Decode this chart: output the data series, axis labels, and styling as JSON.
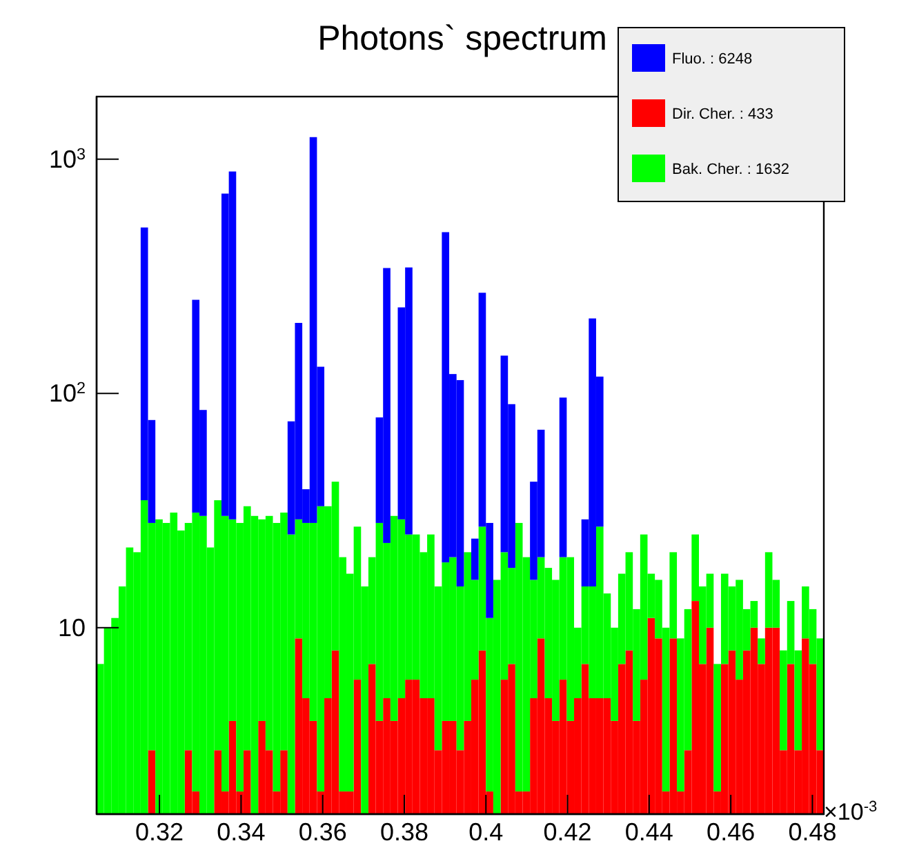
{
  "chart_data": {
    "type": "bar",
    "title": "Photons` spectrum",
    "stacked": true,
    "log": "y",
    "grid": false,
    "legend": "top right",
    "x": [
      0.3055,
      0.3073,
      0.3091,
      0.3109,
      0.3127,
      0.3145,
      0.3163,
      0.3181,
      0.3199,
      0.3217,
      0.3235,
      0.3253,
      0.3271,
      0.3289,
      0.3307,
      0.3325,
      0.3343,
      0.3361,
      0.3379,
      0.3397,
      0.3415,
      0.3433,
      0.3451,
      0.3469,
      0.3487,
      0.3505,
      0.3523,
      0.3541,
      0.3559,
      0.3577,
      0.3595,
      0.3613,
      0.3631,
      0.3649,
      0.3667,
      0.3685,
      0.3703,
      0.3721,
      0.3739,
      0.3757,
      0.3775,
      0.3793,
      0.3811,
      0.3829,
      0.3847,
      0.3865,
      0.3883,
      0.3901,
      0.3919,
      0.3937,
      0.3955,
      0.3973,
      0.3991,
      0.4009,
      0.4027,
      0.4045,
      0.4063,
      0.4081,
      0.4099,
      0.4117,
      0.4135,
      0.4153,
      0.4171,
      0.4189,
      0.4207,
      0.4225,
      0.4243,
      0.4261,
      0.4279,
      0.4297,
      0.4315,
      0.4333,
      0.4351,
      0.4369,
      0.4387,
      0.4405,
      0.4423,
      0.4441,
      0.4459,
      0.4477,
      0.4495,
      0.4513,
      0.4531,
      0.4549,
      0.4567,
      0.4585,
      0.4603,
      0.4621,
      0.4639,
      0.4657,
      0.4675,
      0.4693,
      0.4711,
      0.4729,
      0.4747,
      0.4765,
      0.4783,
      0.4801,
      0.4819
    ],
    "series": [
      {
        "name": "Dir. Cher. : 433",
        "color": "#ff0000",
        "values": [
          null,
          null,
          null,
          null,
          null,
          null,
          null,
          3,
          null,
          null,
          null,
          null,
          3,
          2,
          null,
          null,
          3,
          2,
          4,
          2,
          3,
          null,
          4,
          3,
          2,
          3,
          null,
          9,
          5,
          4,
          2,
          5,
          8,
          2,
          2,
          6,
          null,
          7,
          4,
          5,
          4,
          5,
          6,
          6,
          5,
          5,
          3,
          4,
          4,
          3,
          4,
          6,
          8,
          2,
          null,
          6,
          7,
          2,
          2,
          5,
          9,
          5,
          4,
          6,
          4,
          5,
          7,
          5,
          5,
          5,
          4,
          7,
          8,
          4,
          6,
          11,
          9,
          2,
          9,
          2,
          3,
          13,
          7,
          10,
          2,
          7,
          8,
          6,
          8,
          10,
          7,
          10,
          10,
          3,
          7,
          3,
          9,
          7,
          3
        ]
      },
      {
        "name": "Bak. Cher. : 1632",
        "color": "#00ff00",
        "values": [
          7,
          10,
          11,
          15,
          22,
          21,
          35,
          25,
          29,
          28,
          31,
          26,
          25,
          29,
          30,
          22,
          32,
          28,
          25,
          26,
          30,
          30,
          25,
          27,
          26,
          28,
          25,
          20,
          23,
          24,
          31,
          28,
          34,
          18,
          15,
          21,
          15,
          13,
          24,
          18,
          26,
          24,
          19,
          19,
          16,
          20,
          12,
          15,
          16,
          12,
          17,
          10,
          19,
          9,
          16,
          15,
          11,
          26,
          18,
          11,
          11,
          13,
          12,
          14,
          16,
          5,
          8,
          10,
          22,
          9,
          6,
          10,
          13,
          8,
          19,
          6,
          7,
          8,
          12,
          7,
          9,
          12,
          8,
          7,
          5,
          10,
          7,
          10,
          4,
          3,
          2,
          11,
          6,
          5,
          6,
          5,
          6,
          5,
          6
        ]
      },
      {
        "name": "Fluo. : 6248",
        "color": "#0000ff",
        "values": [
          null,
          null,
          null,
          null,
          null,
          null,
          476,
          49,
          null,
          null,
          null,
          null,
          null,
          220,
          55,
          null,
          null,
          683,
          857,
          null,
          null,
          null,
          null,
          null,
          null,
          null,
          51,
          171,
          11,
          1214,
          97,
          null,
          null,
          null,
          null,
          null,
          null,
          null,
          51,
          320,
          null,
          204,
          320,
          null,
          null,
          null,
          null,
          469,
          101,
          99,
          null,
          8,
          242,
          17,
          null,
          124,
          72,
          null,
          null,
          26,
          50,
          null,
          null,
          76,
          null,
          null,
          14,
          194,
          91,
          null,
          null,
          null,
          null,
          null,
          null,
          null,
          null,
          null,
          null,
          null,
          null,
          null,
          null,
          null,
          null,
          null,
          null,
          null,
          null,
          null,
          null,
          null,
          null,
          null,
          null,
          null,
          null,
          null,
          null
        ]
      }
    ],
    "xlim": [
      0.3046,
      0.4828
    ],
    "xticks": [
      0.32,
      0.34,
      0.36,
      0.38,
      0.4,
      0.42,
      0.44,
      0.46,
      0.48
    ],
    "ylim": [
      1.6,
      1850
    ],
    "yticks": [
      10,
      {
        "value": 100,
        "label": "10$^{2}$"
      },
      {
        "value": 1000,
        "label": "10$^{3}$"
      }
    ],
    "annotations": [
      "×10$^{-3}$"
    ]
  }
}
